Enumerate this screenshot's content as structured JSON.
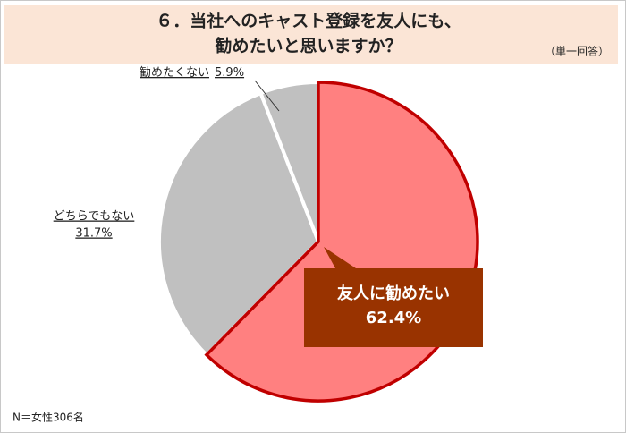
{
  "chart_data": {
    "type": "pie",
    "title": [
      "６．当社へのキャスト登録を友人にも、",
      "勧めたいと思いますか？"
    ],
    "subtitle": "（単一回答）",
    "note": "N＝女性306名",
    "categories": [
      "友人に勧めたい",
      "どちらでもない",
      "勧めたくない"
    ],
    "values": [
      62.4,
      31.7,
      5.9
    ],
    "value_labels": [
      "62.4%",
      "31.7%",
      "5.9%"
    ],
    "colors": [
      "#ff8080",
      "#c0c0c0",
      "#c0c0c0"
    ]
  }
}
